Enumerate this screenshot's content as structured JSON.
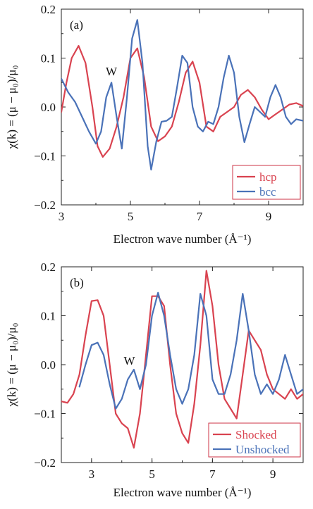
{
  "chart_data": [
    {
      "type": "line",
      "panel_label": "(a)",
      "xlabel": "Electron wave number (Å⁻¹)",
      "ylabel": "χ(k) = (μ − μ₀)/μ₀",
      "xlim": [
        3,
        10
      ],
      "ylim": [
        -0.2,
        0.2
      ],
      "xticks": [
        3,
        5,
        7,
        9
      ],
      "yticks": [
        -0.2,
        -0.1,
        0.0,
        0.1,
        0.2
      ],
      "ytick_labels": [
        "−0.2",
        "−0.1",
        "0.0",
        "0.1",
        "0.2"
      ],
      "legend": {
        "position": "bottom-right"
      },
      "annotations": [
        {
          "text": "W",
          "x": 4.45,
          "y": 0.065
        }
      ],
      "series": [
        {
          "name": "hcp",
          "color": "#d94350",
          "x": [
            3.0,
            3.15,
            3.3,
            3.5,
            3.7,
            3.9,
            4.05,
            4.2,
            4.4,
            4.6,
            4.8,
            5.0,
            5.2,
            5.4,
            5.6,
            5.8,
            6.0,
            6.2,
            6.4,
            6.6,
            6.8,
            7.0,
            7.2,
            7.4,
            7.6,
            7.8,
            8.0,
            8.2,
            8.4,
            8.6,
            8.8,
            9.0,
            9.2,
            9.4,
            9.6,
            9.8,
            10.0
          ],
          "y": [
            -0.01,
            0.05,
            0.1,
            0.125,
            0.09,
            0.0,
            -0.08,
            -0.102,
            -0.085,
            -0.04,
            0.02,
            0.1,
            0.12,
            0.06,
            -0.04,
            -0.07,
            -0.06,
            -0.04,
            0.01,
            0.07,
            0.093,
            0.05,
            -0.04,
            -0.05,
            -0.02,
            -0.01,
            0.0,
            0.025,
            0.035,
            0.02,
            -0.005,
            -0.025,
            -0.015,
            -0.005,
            0.005,
            0.008,
            0.002
          ]
        },
        {
          "name": "bcc",
          "color": "#4a72b8",
          "x": [
            3.0,
            3.2,
            3.4,
            3.6,
            3.8,
            4.0,
            4.15,
            4.3,
            4.45,
            4.6,
            4.75,
            4.9,
            5.05,
            5.2,
            5.35,
            5.5,
            5.6,
            5.75,
            5.9,
            6.05,
            6.2,
            6.35,
            6.5,
            6.65,
            6.8,
            6.95,
            7.1,
            7.25,
            7.4,
            7.55,
            7.7,
            7.85,
            8.0,
            8.15,
            8.3,
            8.45,
            8.6,
            8.75,
            8.9,
            9.05,
            9.2,
            9.35,
            9.5,
            9.65,
            9.8,
            10.0
          ],
          "y": [
            0.058,
            0.03,
            0.01,
            -0.02,
            -0.05,
            -0.075,
            -0.05,
            0.02,
            0.05,
            -0.02,
            -0.085,
            0.02,
            0.14,
            0.178,
            0.09,
            -0.08,
            -0.128,
            -0.07,
            -0.03,
            -0.028,
            -0.02,
            0.04,
            0.105,
            0.09,
            0.0,
            -0.04,
            -0.05,
            -0.03,
            -0.035,
            0.0,
            0.06,
            0.105,
            0.07,
            -0.02,
            -0.072,
            -0.035,
            0.0,
            -0.01,
            -0.02,
            0.02,
            0.045,
            0.02,
            -0.02,
            -0.035,
            -0.025,
            -0.028
          ]
        }
      ]
    },
    {
      "type": "line",
      "panel_label": "(b)",
      "xlabel": "Electron wave number (Å⁻¹)",
      "ylabel": "χ(k) = (μ − μ₀)/μ₀",
      "xlim": [
        2,
        10
      ],
      "ylim": [
        -0.2,
        0.2
      ],
      "xticks": [
        3,
        5,
        7,
        9
      ],
      "yticks": [
        -0.2,
        -0.1,
        0.0,
        0.1,
        0.2
      ],
      "ytick_labels": [
        "−0.2",
        "−0.1",
        "0.0",
        "0.1",
        "0.2"
      ],
      "legend": {
        "position": "bottom-right"
      },
      "annotations": [
        {
          "text": "W",
          "x": 4.25,
          "y": 0.0
        }
      ],
      "series": [
        {
          "name": "Shocked",
          "color": "#d94350",
          "x": [
            2.0,
            2.2,
            2.4,
            2.6,
            2.8,
            3.0,
            3.2,
            3.4,
            3.6,
            3.8,
            4.0,
            4.2,
            4.4,
            4.6,
            4.8,
            5.0,
            5.2,
            5.4,
            5.6,
            5.8,
            6.0,
            6.2,
            6.4,
            6.6,
            6.8,
            7.0,
            7.2,
            7.4,
            7.6,
            7.8,
            8.0,
            8.2,
            8.4,
            8.6,
            8.8,
            9.0,
            9.2,
            9.4,
            9.6,
            9.8,
            10.0
          ],
          "y": [
            -0.075,
            -0.078,
            -0.06,
            -0.02,
            0.06,
            0.13,
            0.132,
            0.1,
            0.0,
            -0.1,
            -0.12,
            -0.13,
            -0.17,
            -0.1,
            0.02,
            0.14,
            0.14,
            0.12,
            0.0,
            -0.1,
            -0.14,
            -0.16,
            -0.08,
            0.04,
            0.192,
            0.12,
            0.0,
            -0.07,
            -0.09,
            -0.11,
            -0.02,
            0.07,
            0.05,
            0.03,
            -0.02,
            -0.05,
            -0.06,
            -0.07,
            -0.05,
            -0.07,
            -0.06
          ]
        },
        {
          "name": "Unshocked",
          "color": "#4a72b8",
          "x": [
            2.6,
            2.8,
            3.0,
            3.2,
            3.4,
            3.6,
            3.8,
            4.0,
            4.2,
            4.4,
            4.6,
            4.8,
            5.0,
            5.2,
            5.4,
            5.6,
            5.8,
            6.0,
            6.2,
            6.4,
            6.6,
            6.8,
            7.0,
            7.2,
            7.4,
            7.6,
            7.8,
            8.0,
            8.2,
            8.4,
            8.6,
            8.8,
            9.0,
            9.2,
            9.4,
            9.6,
            9.8,
            10.0
          ],
          "y": [
            -0.045,
            0.0,
            0.04,
            0.045,
            0.02,
            -0.04,
            -0.09,
            -0.07,
            -0.03,
            -0.01,
            -0.05,
            0.0,
            0.1,
            0.147,
            0.1,
            0.02,
            -0.05,
            -0.08,
            -0.05,
            0.02,
            0.145,
            0.1,
            -0.03,
            -0.06,
            -0.06,
            -0.02,
            0.05,
            0.145,
            0.07,
            -0.02,
            -0.06,
            -0.04,
            -0.06,
            -0.03,
            0.02,
            -0.02,
            -0.06,
            -0.05
          ]
        }
      ]
    }
  ]
}
